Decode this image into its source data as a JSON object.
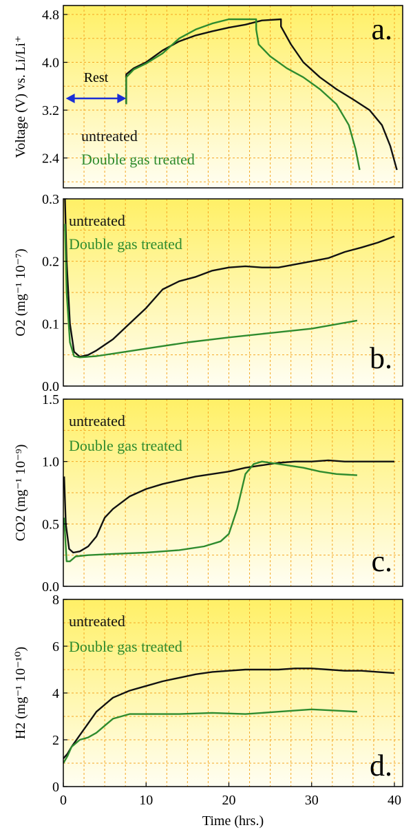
{
  "figure": {
    "x_axis_label": "Time (hrs.)",
    "x_ticks": [
      0,
      10,
      20,
      30,
      40
    ],
    "xlim": [
      0,
      41
    ],
    "colors": {
      "untreated": "#111111",
      "treated": "#2e8b2e",
      "background_top": "#fff066",
      "background_bottom": "#fffef2",
      "grid": "#f5a623",
      "arrow": "#1a2fd6"
    }
  },
  "chart_data": [
    {
      "type": "line",
      "panel_label": "a.",
      "ylabel": "Voltage (V) vs. Li/Li⁺",
      "ylim": [
        1.9,
        4.95
      ],
      "y_ticks": [
        2.4,
        3.2,
        4.0,
        4.8
      ],
      "y_tick_labels": [
        "2.4",
        "3.2",
        "4.0",
        "4.8"
      ],
      "annotation": "Rest",
      "annotation_span_hours": [
        0.3,
        7.6
      ],
      "legend": [
        "untreated",
        "Double gas treated"
      ],
      "series": [
        {
          "name": "untreated",
          "x": [
            7.6,
            7.6,
            8.5,
            10,
            12,
            14,
            16,
            18,
            20,
            22,
            24,
            26.3,
            26.3,
            27.5,
            29,
            31,
            33,
            35,
            37,
            38.5,
            39.5,
            40.3
          ],
          "y": [
            3.3,
            3.8,
            3.9,
            4.0,
            4.2,
            4.35,
            4.45,
            4.52,
            4.58,
            4.63,
            4.7,
            4.72,
            4.6,
            4.3,
            4.0,
            3.75,
            3.55,
            3.38,
            3.2,
            2.95,
            2.6,
            2.2
          ]
        },
        {
          "name": "Double gas treated",
          "x": [
            7.6,
            7.6,
            8.5,
            10,
            12,
            14,
            16,
            18,
            20,
            22,
            23.3,
            23.3,
            23.6,
            25,
            27,
            29,
            31,
            33,
            34.5,
            35.3,
            35.8
          ],
          "y": [
            3.3,
            3.75,
            3.88,
            3.98,
            4.15,
            4.4,
            4.55,
            4.65,
            4.72,
            4.72,
            4.72,
            4.55,
            4.3,
            4.1,
            3.9,
            3.75,
            3.55,
            3.3,
            2.95,
            2.55,
            2.2
          ]
        }
      ]
    },
    {
      "type": "line",
      "panel_label": "b.",
      "ylabel": "O2 (mg⁻¹ 10⁻⁷)",
      "ylim": [
        0,
        0.3
      ],
      "y_ticks": [
        0.0,
        0.1,
        0.2,
        0.3
      ],
      "y_tick_labels": [
        "0.0",
        "0.1",
        "0.2",
        "0.3"
      ],
      "legend": [
        "untreated",
        "Double gas treated"
      ],
      "series": [
        {
          "name": "untreated",
          "x": [
            0.2,
            0.4,
            0.8,
            1.3,
            2,
            3,
            4,
            6,
            8,
            10,
            12,
            14,
            16,
            18,
            20,
            22,
            24,
            26,
            28,
            30,
            32,
            34,
            36,
            38,
            40
          ],
          "y": [
            0.3,
            0.2,
            0.1,
            0.055,
            0.047,
            0.05,
            0.057,
            0.075,
            0.1,
            0.125,
            0.155,
            0.168,
            0.175,
            0.185,
            0.19,
            0.192,
            0.19,
            0.19,
            0.195,
            0.2,
            0.205,
            0.215,
            0.222,
            0.23,
            0.24
          ]
        },
        {
          "name": "Double gas treated",
          "x": [
            0.2,
            0.4,
            0.8,
            1.3,
            2,
            4,
            6,
            10,
            15,
            20,
            25,
            30,
            35.5
          ],
          "y": [
            0.26,
            0.15,
            0.07,
            0.048,
            0.046,
            0.048,
            0.052,
            0.06,
            0.07,
            0.078,
            0.085,
            0.092,
            0.105
          ]
        }
      ]
    },
    {
      "type": "line",
      "panel_label": "c.",
      "ylabel": "CO2 (mg⁻¹ 10⁻⁹)",
      "ylim": [
        0,
        1.5
      ],
      "y_ticks": [
        0.0,
        0.5,
        1.0,
        1.5
      ],
      "y_tick_labels": [
        "0.0",
        "0.5",
        "1.0",
        "1.5"
      ],
      "legend": [
        "untreated",
        "Double gas treated"
      ],
      "series": [
        {
          "name": "untreated",
          "x": [
            0.1,
            0.3,
            0.7,
            1.2,
            2,
            3,
            4,
            5,
            6,
            8,
            10,
            12,
            14,
            16,
            18,
            20,
            22,
            24,
            26,
            28,
            30,
            32,
            34,
            36,
            38,
            40
          ],
          "y": [
            0.88,
            0.5,
            0.3,
            0.27,
            0.28,
            0.32,
            0.4,
            0.55,
            0.62,
            0.72,
            0.78,
            0.82,
            0.85,
            0.88,
            0.9,
            0.92,
            0.95,
            0.97,
            0.99,
            1.0,
            1.0,
            1.01,
            1.0,
            1.0,
            1.0,
            1.0
          ]
        },
        {
          "name": "Double gas treated",
          "x": [
            0.1,
            0.4,
            0.8,
            1.5,
            3,
            6,
            10,
            14,
            17,
            19,
            20,
            21,
            22,
            23,
            24,
            25,
            27,
            29,
            31,
            33,
            35.5
          ],
          "y": [
            0.55,
            0.2,
            0.2,
            0.24,
            0.25,
            0.26,
            0.27,
            0.29,
            0.32,
            0.36,
            0.42,
            0.62,
            0.9,
            0.98,
            1.0,
            0.99,
            0.97,
            0.95,
            0.92,
            0.9,
            0.89
          ]
        }
      ]
    },
    {
      "type": "line",
      "panel_label": "d.",
      "ylabel": "H2 (mg⁻¹ 10⁻¹⁰)",
      "ylim": [
        0,
        8
      ],
      "y_ticks": [
        0,
        2,
        4,
        6,
        8
      ],
      "y_tick_labels": [
        "0",
        "2",
        "4",
        "6",
        "8"
      ],
      "legend": [
        "untreated",
        "Double gas treated"
      ],
      "series": [
        {
          "name": "untreated",
          "x": [
            0,
            0.5,
            1,
            2,
            3,
            4,
            5,
            6,
            8,
            10,
            12,
            14,
            16,
            18,
            20,
            22,
            24,
            26,
            28,
            30,
            32,
            34,
            36,
            38,
            40
          ],
          "y": [
            1.2,
            1.4,
            1.7,
            2.2,
            2.7,
            3.2,
            3.5,
            3.8,
            4.1,
            4.3,
            4.5,
            4.65,
            4.8,
            4.9,
            4.95,
            5.0,
            5.0,
            5.0,
            5.05,
            5.05,
            5.0,
            4.95,
            4.95,
            4.9,
            4.85
          ]
        },
        {
          "name": "Double gas treated",
          "x": [
            0,
            0.5,
            1,
            2,
            3,
            4,
            5,
            6,
            7,
            8,
            10,
            14,
            18,
            22,
            26,
            30,
            35.5
          ],
          "y": [
            1.0,
            1.3,
            1.7,
            2.0,
            2.1,
            2.3,
            2.6,
            2.9,
            3.0,
            3.1,
            3.1,
            3.1,
            3.15,
            3.1,
            3.2,
            3.3,
            3.2
          ]
        }
      ]
    }
  ]
}
